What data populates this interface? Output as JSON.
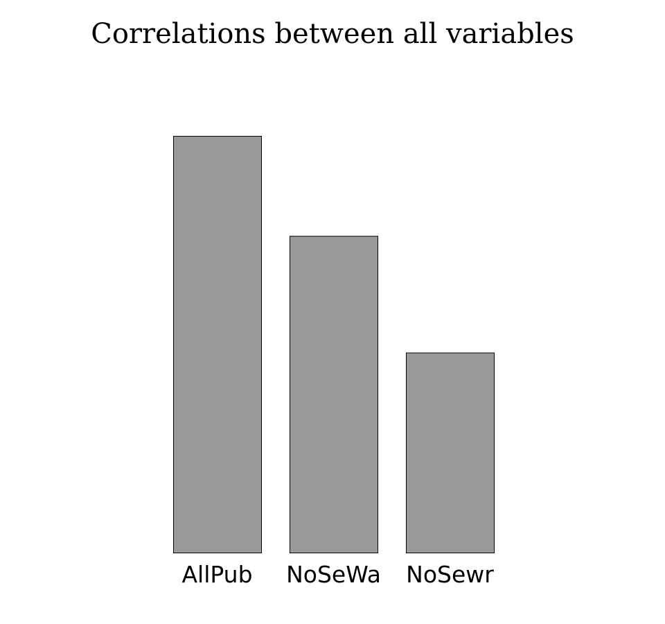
{
  "chart_data": {
    "type": "bar",
    "title": "Correlations between all variables",
    "categories": [
      "AllPub",
      "NoSeWa",
      "NoSewr"
    ],
    "values": [
      1.0,
      0.76,
      0.48
    ],
    "ylim": [
      0,
      1.0
    ],
    "bar_color": "#999999",
    "bar_edge_color": "#000000",
    "grid": false,
    "legend": "none"
  }
}
